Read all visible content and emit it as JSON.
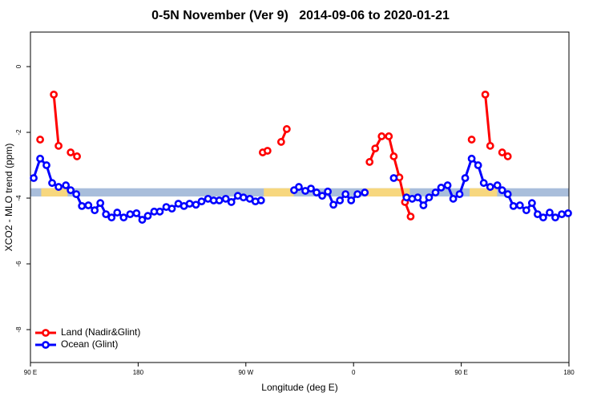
{
  "chart_data": {
    "type": "line",
    "title": "0-5N November (Ver 9)   2014-09-06 to 2020-01-21",
    "x_label": "Longitude (deg E)",
    "y_label": "XCO2 - MLO trend (ppm)",
    "xlim": [
      90,
      540
    ],
    "ylim": [
      -9,
      1.05
    ],
    "xticks": [
      {
        "value": 90,
        "label": "90 E"
      },
      {
        "value": 180,
        "label": "180"
      },
      {
        "value": 270,
        "label": "90 W"
      },
      {
        "value": 360,
        "label": "0"
      },
      {
        "value": 450,
        "label": "90 E"
      },
      {
        "value": 540,
        "label": "180"
      }
    ],
    "yticks": [
      0,
      -2,
      -4,
      -6,
      -8
    ],
    "legend": "bottom-left",
    "mask": {
      "range": [
        -3.95,
        -3.7
      ],
      "ocean_color": "#a9bedb",
      "land_color": "#f7d77e",
      "land": [
        [
          99,
          121
        ],
        [
          285,
          310
        ],
        [
          370,
          407
        ],
        [
          457,
          480
        ]
      ]
    },
    "series": [
      {
        "name": "Land (Nadir&Glint)",
        "color": "#ff0000",
        "x": [
          98.1,
          null,
          109.5,
          113.5,
          null,
          123.6,
          128.9,
          null,
          284.1,
          288.1,
          null,
          299.5,
          304.2,
          null,
          373.4,
          378.1,
          383.5,
          389.5,
          393.6,
          398.3,
          403.0,
          407.7,
          null,
          458.7,
          null,
          470.1,
          474.2,
          null,
          484.2,
          488.9
        ],
        "values": [
          -2.22,
          null,
          -0.85,
          -2.41,
          null,
          -2.61,
          -2.73,
          null,
          -2.61,
          -2.56,
          null,
          -2.29,
          -1.9,
          null,
          -2.9,
          -2.49,
          -2.12,
          -2.12,
          -2.73,
          -3.37,
          -4.12,
          -4.56,
          null,
          -2.22,
          null,
          -0.85,
          -2.41,
          null,
          -2.61,
          -2.73
        ]
      },
      {
        "name": "Ocean (Glint)",
        "color": "#0000ff",
        "x": [
          92.7,
          98.1,
          103.4,
          108.1,
          113.5,
          119.6,
          123.6,
          128.3,
          133.0,
          138.4,
          143.7,
          148.4,
          153.1,
          157.8,
          162.5,
          167.9,
          173.3,
          178.6,
          183.4,
          188.1,
          193.4,
          198.1,
          203.5,
          208.2,
          213.6,
          218.3,
          223.0,
          228.3,
          233.0,
          238.4,
          243.1,
          247.8,
          253.2,
          257.9,
          263.3,
          268.0,
          273.3,
          278.0,
          282.7,
          null,
          310.3,
          314.3,
          319.7,
          324.4,
          329.1,
          333.8,
          338.5,
          343.2,
          348.6,
          353.3,
          358.0,
          363.3,
          369.4,
          null,
          393.6,
          null,
          404.3,
          409.0,
          413.7,
          418.4,
          423.1,
          428.5,
          433.2,
          438.6,
          443.3,
          448.6,
          453.3,
          458.7,
          464.1,
          468.8,
          474.2,
          480.2,
          484.2,
          488.9,
          493.6,
          499.0,
          504.4,
          509.1,
          513.8,
          518.5,
          523.9,
          528.6,
          534.0,
          539.3
        ],
        "values": [
          -3.39,
          -2.8,
          -3.0,
          -3.54,
          -3.66,
          -3.61,
          -3.76,
          -3.88,
          -4.24,
          -4.22,
          -4.37,
          -4.15,
          -4.49,
          -4.59,
          -4.44,
          -4.59,
          -4.49,
          -4.46,
          -4.66,
          -4.54,
          -4.41,
          -4.41,
          -4.27,
          -4.32,
          -4.17,
          -4.24,
          -4.17,
          -4.2,
          -4.1,
          -4.02,
          -4.07,
          -4.07,
          -4.02,
          -4.12,
          -3.93,
          -3.98,
          -4.02,
          -4.1,
          -4.07,
          null,
          -3.76,
          -3.66,
          -3.78,
          -3.71,
          -3.83,
          -3.93,
          -3.8,
          -4.2,
          -4.07,
          -3.88,
          -4.07,
          -3.88,
          -3.83,
          null,
          -3.39,
          null,
          -3.98,
          -4.02,
          -3.98,
          -4.22,
          -3.98,
          -3.83,
          -3.68,
          -3.61,
          -4.02,
          -3.88,
          -3.39,
          -2.8,
          -3.0,
          -3.54,
          -3.66,
          -3.61,
          -3.76,
          -3.88,
          -4.24,
          -4.22,
          -4.37,
          -4.15,
          -4.49,
          -4.59,
          -4.44,
          -4.59,
          -4.49,
          -4.46
        ]
      }
    ]
  }
}
